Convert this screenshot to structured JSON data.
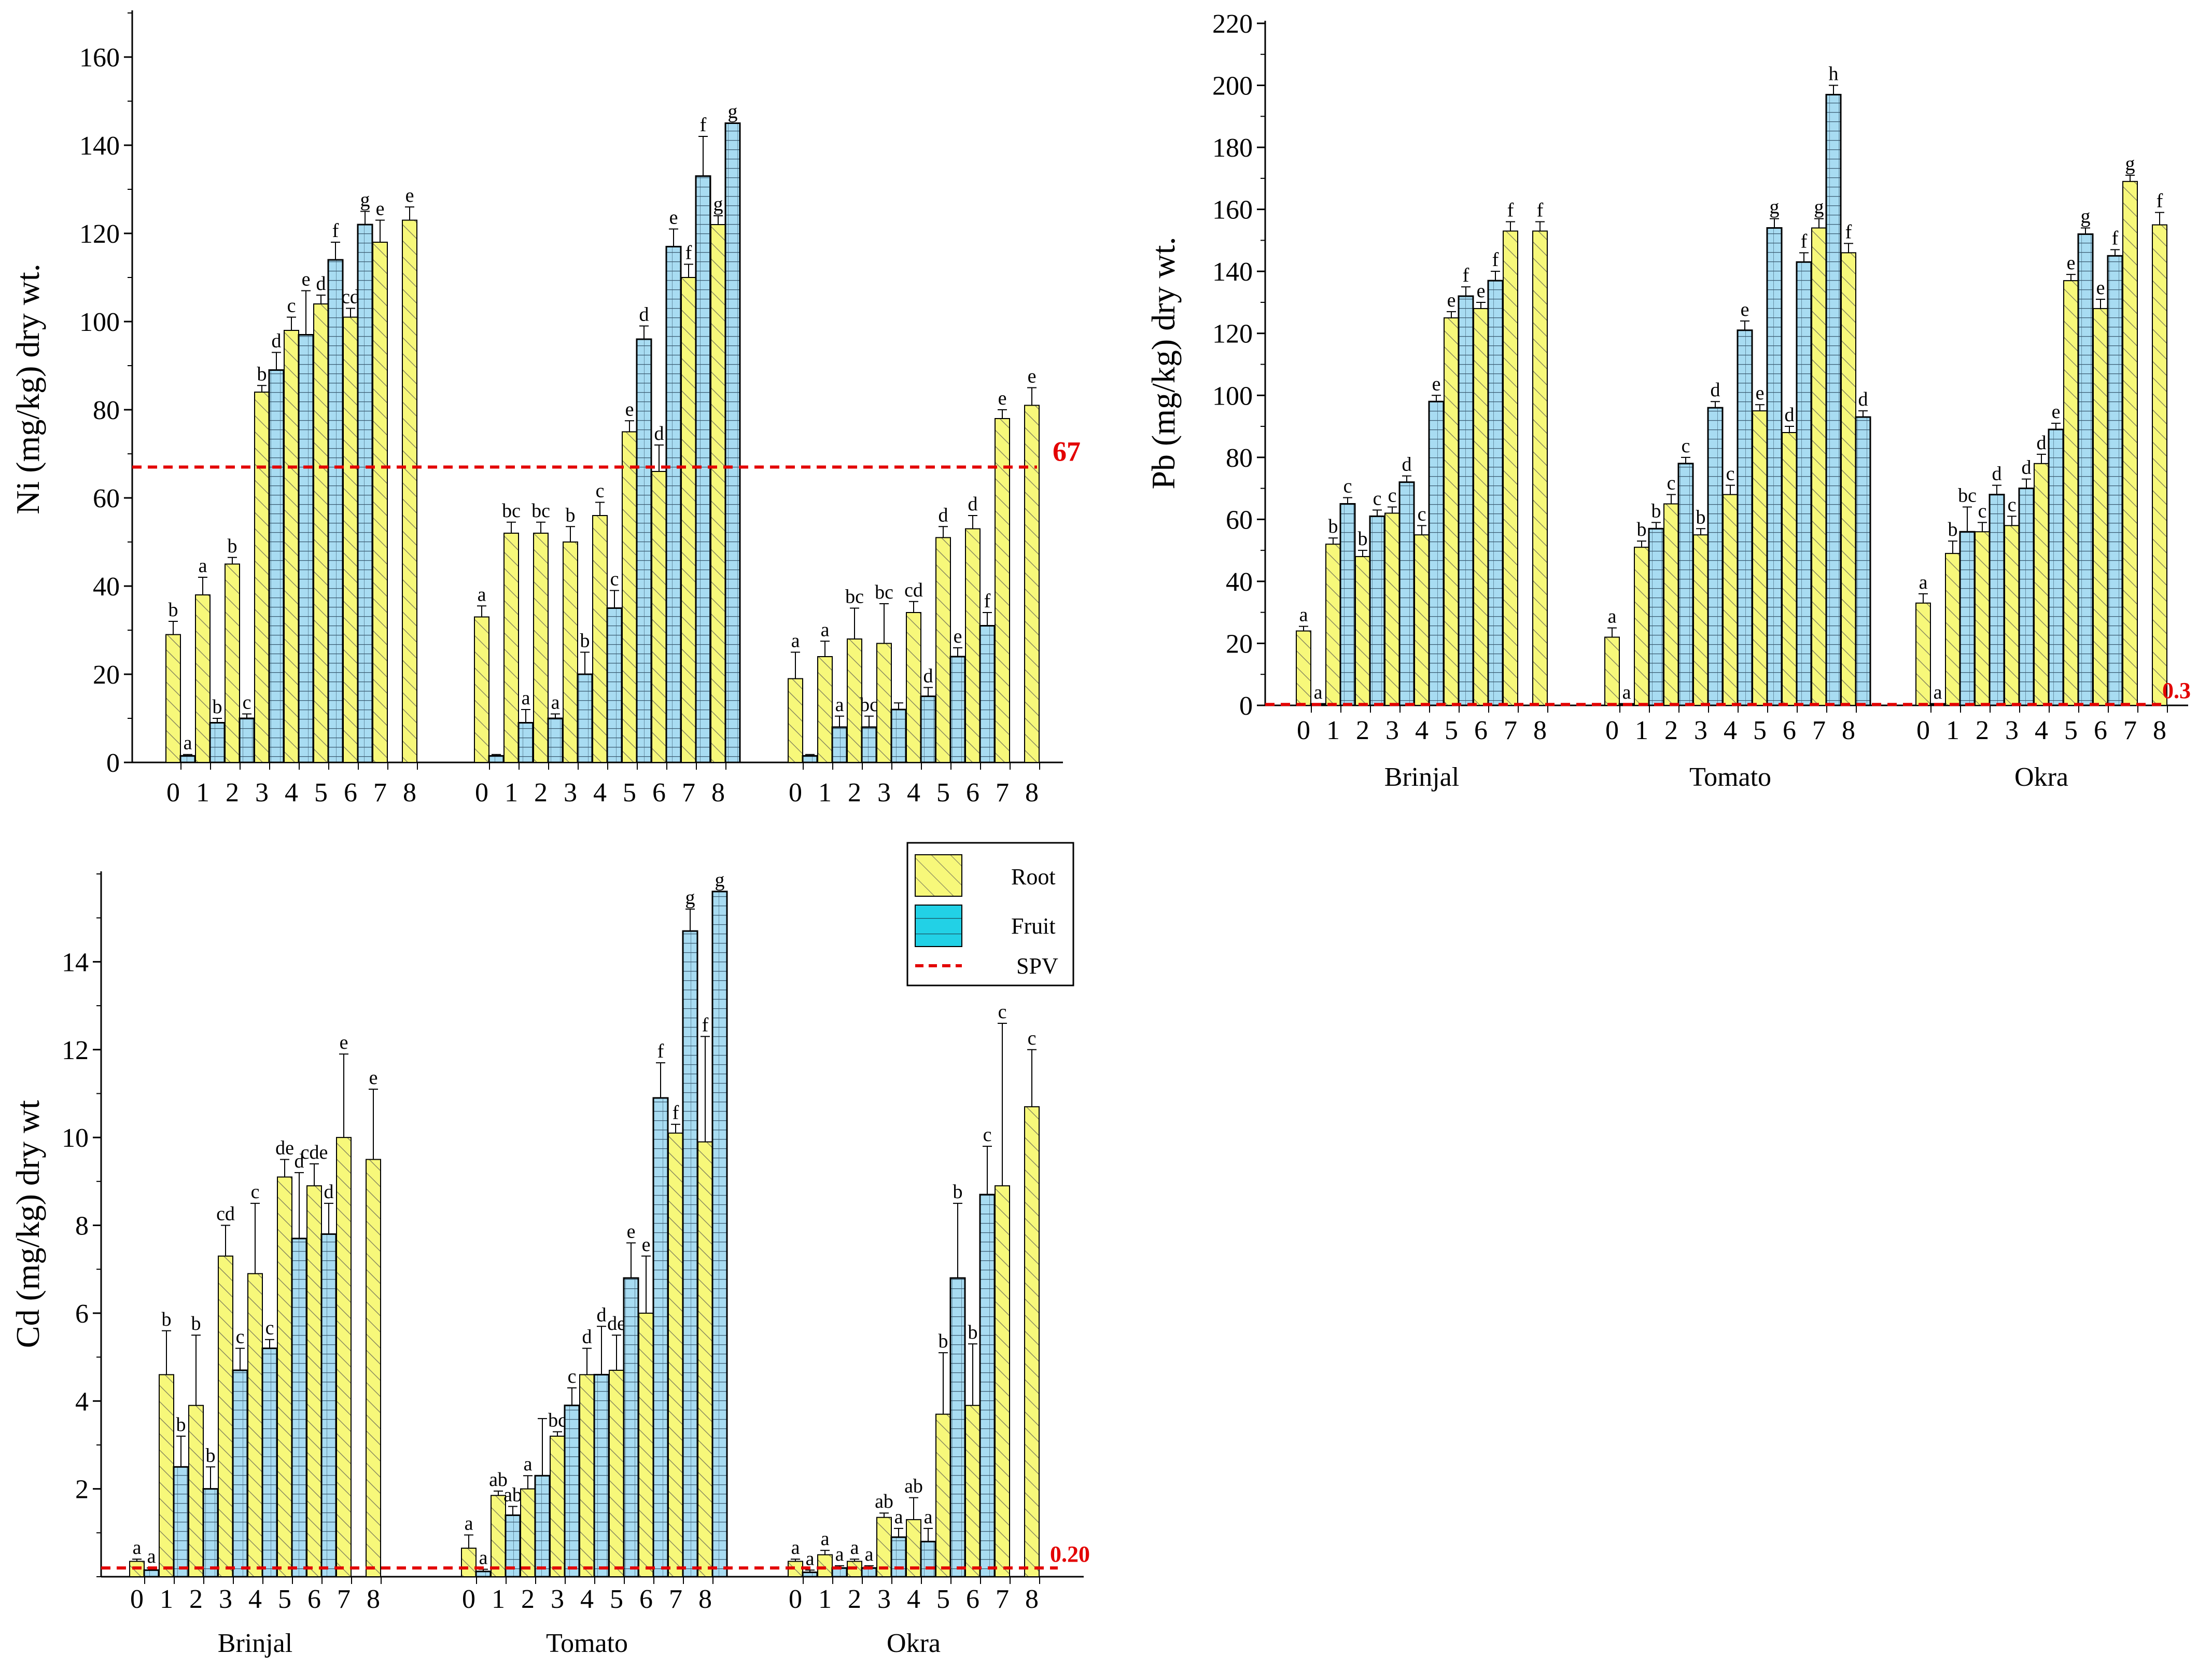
{
  "colors": {
    "root_fill": "#f7f87a",
    "fruit_fill": "#a8dcf2",
    "spv_line": "#e30000",
    "axis": "#000000"
  },
  "legend": {
    "root": "Root",
    "fruit": "Fruit",
    "spv": "SPV"
  },
  "chart_data": [
    {
      "id": "ni",
      "type": "bar",
      "ylabel": "Ni (mg/kg) dry wt.",
      "ylim": [
        0,
        170
      ],
      "yticks": [
        0,
        20,
        40,
        60,
        80,
        100,
        120,
        140,
        160
      ],
      "spv": 67,
      "spv_label": "67",
      "categories": [
        "0",
        "1",
        "2",
        "3",
        "4",
        "5",
        "6",
        "7",
        "8"
      ],
      "group_labels_shown": false,
      "groups": [
        {
          "name": "Brinjal",
          "root": [
            29,
            38,
            45,
            84,
            98,
            104,
            101,
            118,
            123
          ],
          "root_err": [
            3,
            4,
            1.5,
            1.5,
            3,
            2,
            2,
            5,
            3
          ],
          "root_letters": [
            "b",
            "a",
            "b",
            "b",
            "c",
            "d",
            "cd",
            "e",
            "e"
          ],
          "fruit": [
            1.5,
            9,
            10,
            89,
            97,
            114,
            122,
            null,
            null
          ],
          "fruit_err": [
            0.3,
            1,
            1,
            4,
            10,
            4,
            3,
            null,
            null
          ],
          "fruit_letters": [
            "a",
            "b",
            "c",
            "d",
            "e",
            "f",
            "g",
            "",
            ""
          ]
        },
        {
          "name": "Tomato",
          "root": [
            33,
            52,
            52,
            50,
            56,
            75,
            66,
            110,
            122
          ],
          "root_err": [
            2.5,
            2.5,
            2.5,
            3.5,
            3,
            2.5,
            6,
            3,
            2
          ],
          "root_letters": [
            "a",
            "bc",
            "bc",
            "b",
            "c",
            "e",
            "d",
            "f",
            "g"
          ],
          "fruit": [
            1.5,
            9,
            10,
            20,
            35,
            96,
            117,
            133,
            145
          ],
          "fruit_err": [
            0.3,
            3,
            1,
            5,
            4,
            3,
            4,
            9,
            0
          ],
          "fruit_letters": [
            "",
            "a",
            "a",
            "b",
            "c",
            "d",
            "e",
            "f",
            "g"
          ]
        },
        {
          "name": "Okra",
          "root": [
            19,
            24,
            28,
            27,
            34,
            51,
            53,
            78,
            81
          ],
          "root_err": [
            6,
            3.5,
            7,
            9,
            2.5,
            2.5,
            3,
            2,
            4
          ],
          "root_letters": [
            "a",
            "a",
            "bc",
            "bc",
            "cd",
            "d",
            "d",
            "e",
            "e"
          ],
          "fruit": [
            1.5,
            8,
            8,
            12,
            15,
            24,
            31,
            null,
            null
          ],
          "fruit_err": [
            0.3,
            2.5,
            2.5,
            1.5,
            2,
            2,
            3,
            null,
            null
          ],
          "fruit_letters": [
            "",
            "a",
            "bc",
            "",
            "d",
            "e",
            "f",
            "",
            ""
          ]
        }
      ]
    },
    {
      "id": "pb",
      "type": "bar",
      "ylabel": "Pb (mg/kg) dry wt.",
      "ylim": [
        0,
        220
      ],
      "yticks": [
        0,
        20,
        40,
        60,
        80,
        100,
        120,
        140,
        160,
        180,
        200,
        220
      ],
      "spv": 0.3,
      "spv_label": "0.3",
      "categories": [
        "0",
        "1",
        "2",
        "3",
        "4",
        "5",
        "6",
        "7",
        "8"
      ],
      "group_labels_shown": true,
      "groups": [
        {
          "name": "Brinjal",
          "root": [
            24,
            52,
            48,
            62,
            55,
            125,
            128,
            153,
            153
          ],
          "root_err": [
            1.5,
            2,
            2,
            2,
            3,
            2,
            2,
            3,
            3
          ],
          "root_letters": [
            "a",
            "b",
            "b",
            "c",
            "c",
            "e",
            "e",
            "f",
            "f"
          ],
          "fruit": [
            0.5,
            65,
            61,
            72,
            98,
            132,
            137,
            null,
            null
          ],
          "fruit_err": [
            0,
            2,
            2,
            2,
            2,
            3,
            3,
            null,
            null
          ],
          "fruit_letters": [
            "a",
            "c",
            "c",
            "d",
            "e",
            "f",
            "f",
            "",
            ""
          ]
        },
        {
          "name": "Tomato",
          "root": [
            22,
            51,
            65,
            55,
            68,
            95,
            88,
            154,
            146
          ],
          "root_err": [
            3,
            2,
            3,
            2,
            3,
            2,
            2,
            3,
            3
          ],
          "root_letters": [
            "a",
            "b",
            "c",
            "b",
            "c",
            "e",
            "d",
            "g",
            "f"
          ],
          "fruit": [
            0.5,
            57,
            78,
            96,
            121,
            154,
            143,
            197,
            93
          ],
          "fruit_err": [
            0,
            2,
            2,
            2,
            3,
            3,
            3,
            3,
            2
          ],
          "fruit_letters": [
            "a",
            "b",
            "c",
            "d",
            "e",
            "g",
            "f",
            "h",
            "d"
          ]
        },
        {
          "name": "Okra",
          "root": [
            33,
            49,
            56,
            58,
            78,
            137,
            128,
            169,
            155
          ],
          "root_err": [
            3,
            4,
            3,
            3,
            3,
            2,
            3,
            2,
            4
          ],
          "root_letters": [
            "a",
            "b",
            "c",
            "c",
            "d",
            "e",
            "e",
            "g",
            "f"
          ],
          "fruit": [
            0.5,
            56,
            68,
            70,
            89,
            152,
            145,
            null,
            null
          ],
          "fruit_err": [
            0,
            8,
            3,
            3,
            2,
            2,
            2,
            null,
            null
          ],
          "fruit_letters": [
            "a",
            "bc",
            "d",
            "d",
            "e",
            "g",
            "f",
            "",
            ""
          ]
        }
      ]
    },
    {
      "id": "cd",
      "type": "bar",
      "ylabel": "Cd (mg/kg) dry wt",
      "ylim": [
        0,
        16
      ],
      "yticks": [
        2,
        4,
        6,
        8,
        10,
        12,
        14
      ],
      "spv": 0.2,
      "spv_label": "0.20",
      "categories": [
        "0",
        "1",
        "2",
        "3",
        "4",
        "5",
        "6",
        "7",
        "8"
      ],
      "group_labels_shown": true,
      "groups": [
        {
          "name": "Brinjal",
          "root": [
            0.35,
            4.6,
            3.9,
            7.3,
            6.9,
            9.1,
            8.9,
            10.0,
            9.5
          ],
          "root_err": [
            0.05,
            1.0,
            1.6,
            0.7,
            1.6,
            0.4,
            0.5,
            1.9,
            1.6
          ],
          "root_letters": [
            "a",
            "b",
            "b",
            "cd",
            "c",
            "de",
            "cde",
            "e",
            "e"
          ],
          "fruit": [
            0.15,
            2.5,
            2.0,
            4.7,
            5.2,
            7.7,
            7.8,
            null,
            null
          ],
          "fruit_err": [
            0.05,
            0.7,
            0.5,
            0.5,
            0.2,
            1.5,
            0.7,
            null,
            null
          ],
          "fruit_letters": [
            "a",
            "b",
            "b",
            "c",
            "c",
            "d",
            "d",
            "",
            ""
          ]
        },
        {
          "name": "Tomato",
          "root": [
            0.65,
            1.85,
            2.0,
            3.2,
            4.6,
            4.7,
            6.0,
            10.1,
            9.9
          ],
          "root_err": [
            0.3,
            0.1,
            0.3,
            0.1,
            0.6,
            0.8,
            1.3,
            0.2,
            2.4
          ],
          "root_letters": [
            "a",
            "ab",
            "a",
            "bc",
            "d",
            "de",
            "e",
            "f",
            "f"
          ],
          "fruit": [
            0.12,
            1.4,
            2.3,
            3.9,
            4.6,
            6.8,
            10.9,
            14.7,
            15.6
          ],
          "fruit_err": [
            0.05,
            0.2,
            1.3,
            0.4,
            1.1,
            0.8,
            0.8,
            0.5,
            0
          ],
          "fruit_letters": [
            "a",
            "ab",
            "",
            "c",
            "d",
            "e",
            "f",
            "g",
            "g"
          ]
        },
        {
          "name": "Okra",
          "root": [
            0.35,
            0.5,
            0.35,
            1.35,
            1.3,
            3.7,
            3.9,
            8.9,
            10.7
          ],
          "root_err": [
            0.05,
            0.1,
            0.05,
            0.1,
            0.5,
            1.4,
            1.4,
            3.7,
            1.3
          ],
          "root_letters": [
            "a",
            "a",
            "a",
            "ab",
            "ab",
            "b",
            "b",
            "c",
            "c"
          ],
          "fruit": [
            0.1,
            0.2,
            0.2,
            0.9,
            0.8,
            6.8,
            8.7,
            null,
            null
          ],
          "fruit_err": [
            0.05,
            0.05,
            0.05,
            0.2,
            0.3,
            1.7,
            1.1,
            null,
            null
          ],
          "fruit_letters": [
            "a",
            "a",
            "a",
            "a",
            "a",
            "b",
            "c",
            "",
            ""
          ]
        }
      ]
    }
  ]
}
